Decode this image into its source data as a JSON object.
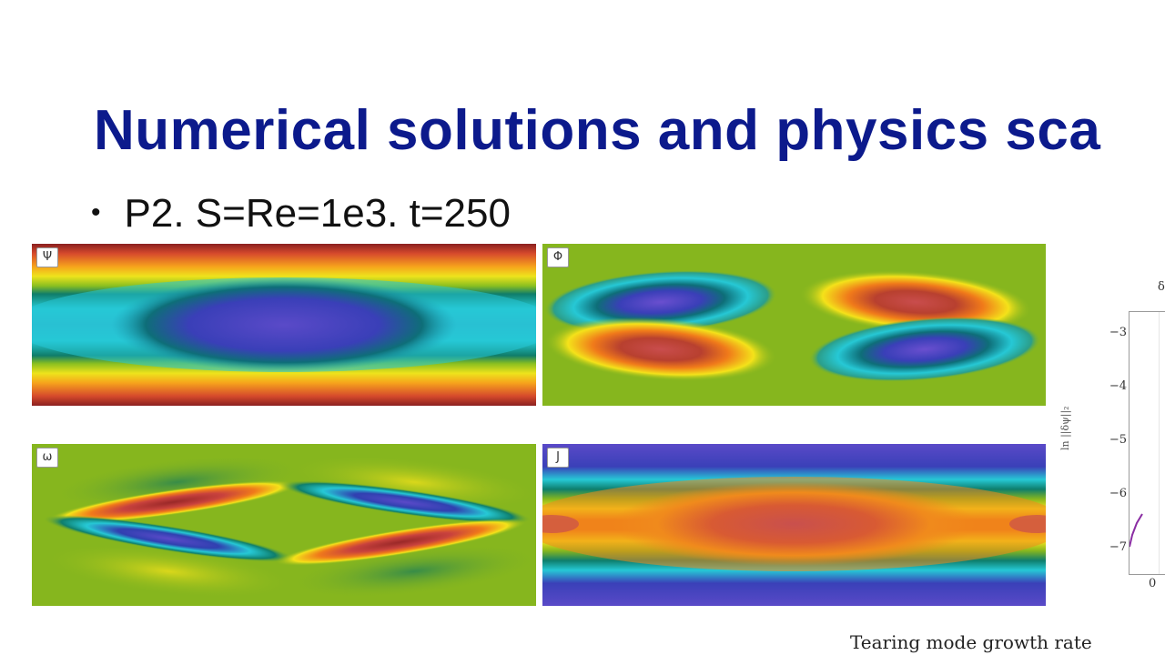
{
  "slide": {
    "title": "Numerical solutions and physics sca",
    "bullet_marker": "•",
    "bullet": "P2. S=Re=1e3. t=250"
  },
  "panels": [
    {
      "label": "Ψ",
      "field": "psi"
    },
    {
      "label": "Φ",
      "field": "phi"
    },
    {
      "label": "ω",
      "field": "omega"
    },
    {
      "label": "J",
      "field": "current"
    }
  ],
  "colormap": [
    "#6a4fcf",
    "#2f3fb0",
    "#25c9d6",
    "#0e7e6c",
    "#86b61e",
    "#f4e21a",
    "#f07a1a",
    "#c9423d",
    "#7a1d1d"
  ],
  "growth_plot": {
    "top_label": "δ",
    "y_axis_label": "ln ||δψ||₂",
    "y_ticks": [
      "−3",
      "−4",
      "−5",
      "−6",
      "−7"
    ],
    "x_tick": "0",
    "caption": "Tearing mode growth rate",
    "line_color": "#8a2da3"
  }
}
